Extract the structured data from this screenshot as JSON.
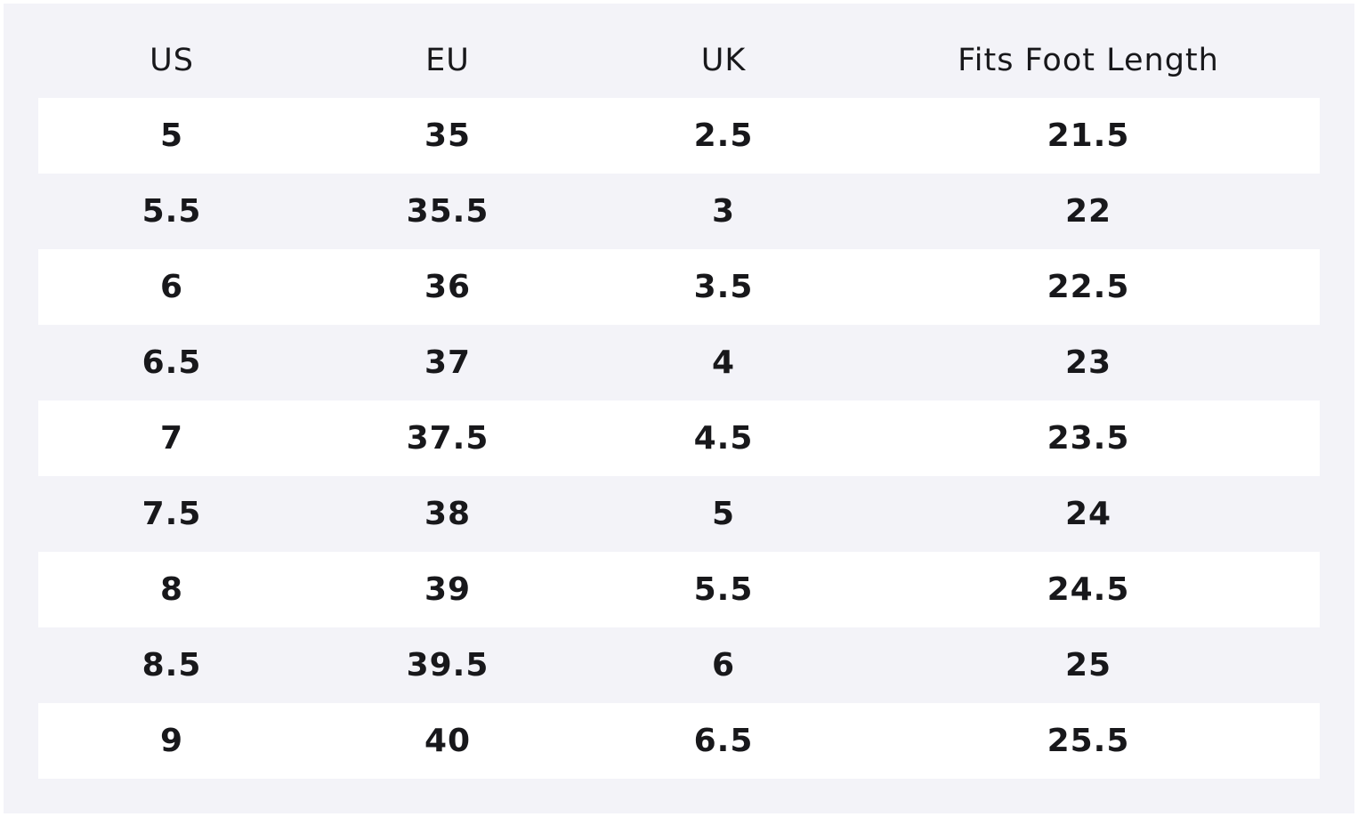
{
  "table": {
    "headers": [
      "US",
      "EU",
      "UK",
      "Fits Foot Length"
    ],
    "rows": [
      [
        "5",
        "35",
        "2.5",
        "21.5"
      ],
      [
        "5.5",
        "35.5",
        "3",
        "22"
      ],
      [
        "6",
        "36",
        "3.5",
        "22.5"
      ],
      [
        "6.5",
        "37",
        "4",
        "23"
      ],
      [
        "7",
        "37.5",
        "4.5",
        "23.5"
      ],
      [
        "7.5",
        "38",
        "5",
        "24"
      ],
      [
        "8",
        "39",
        "5.5",
        "24.5"
      ],
      [
        "8.5",
        "39.5",
        "6",
        "25"
      ],
      [
        "9",
        "40",
        "6.5",
        "25.5"
      ]
    ]
  },
  "colors": {
    "panel_background": "#f3f3f8",
    "row_highlight": "#ffffff",
    "text": "#18181b"
  }
}
